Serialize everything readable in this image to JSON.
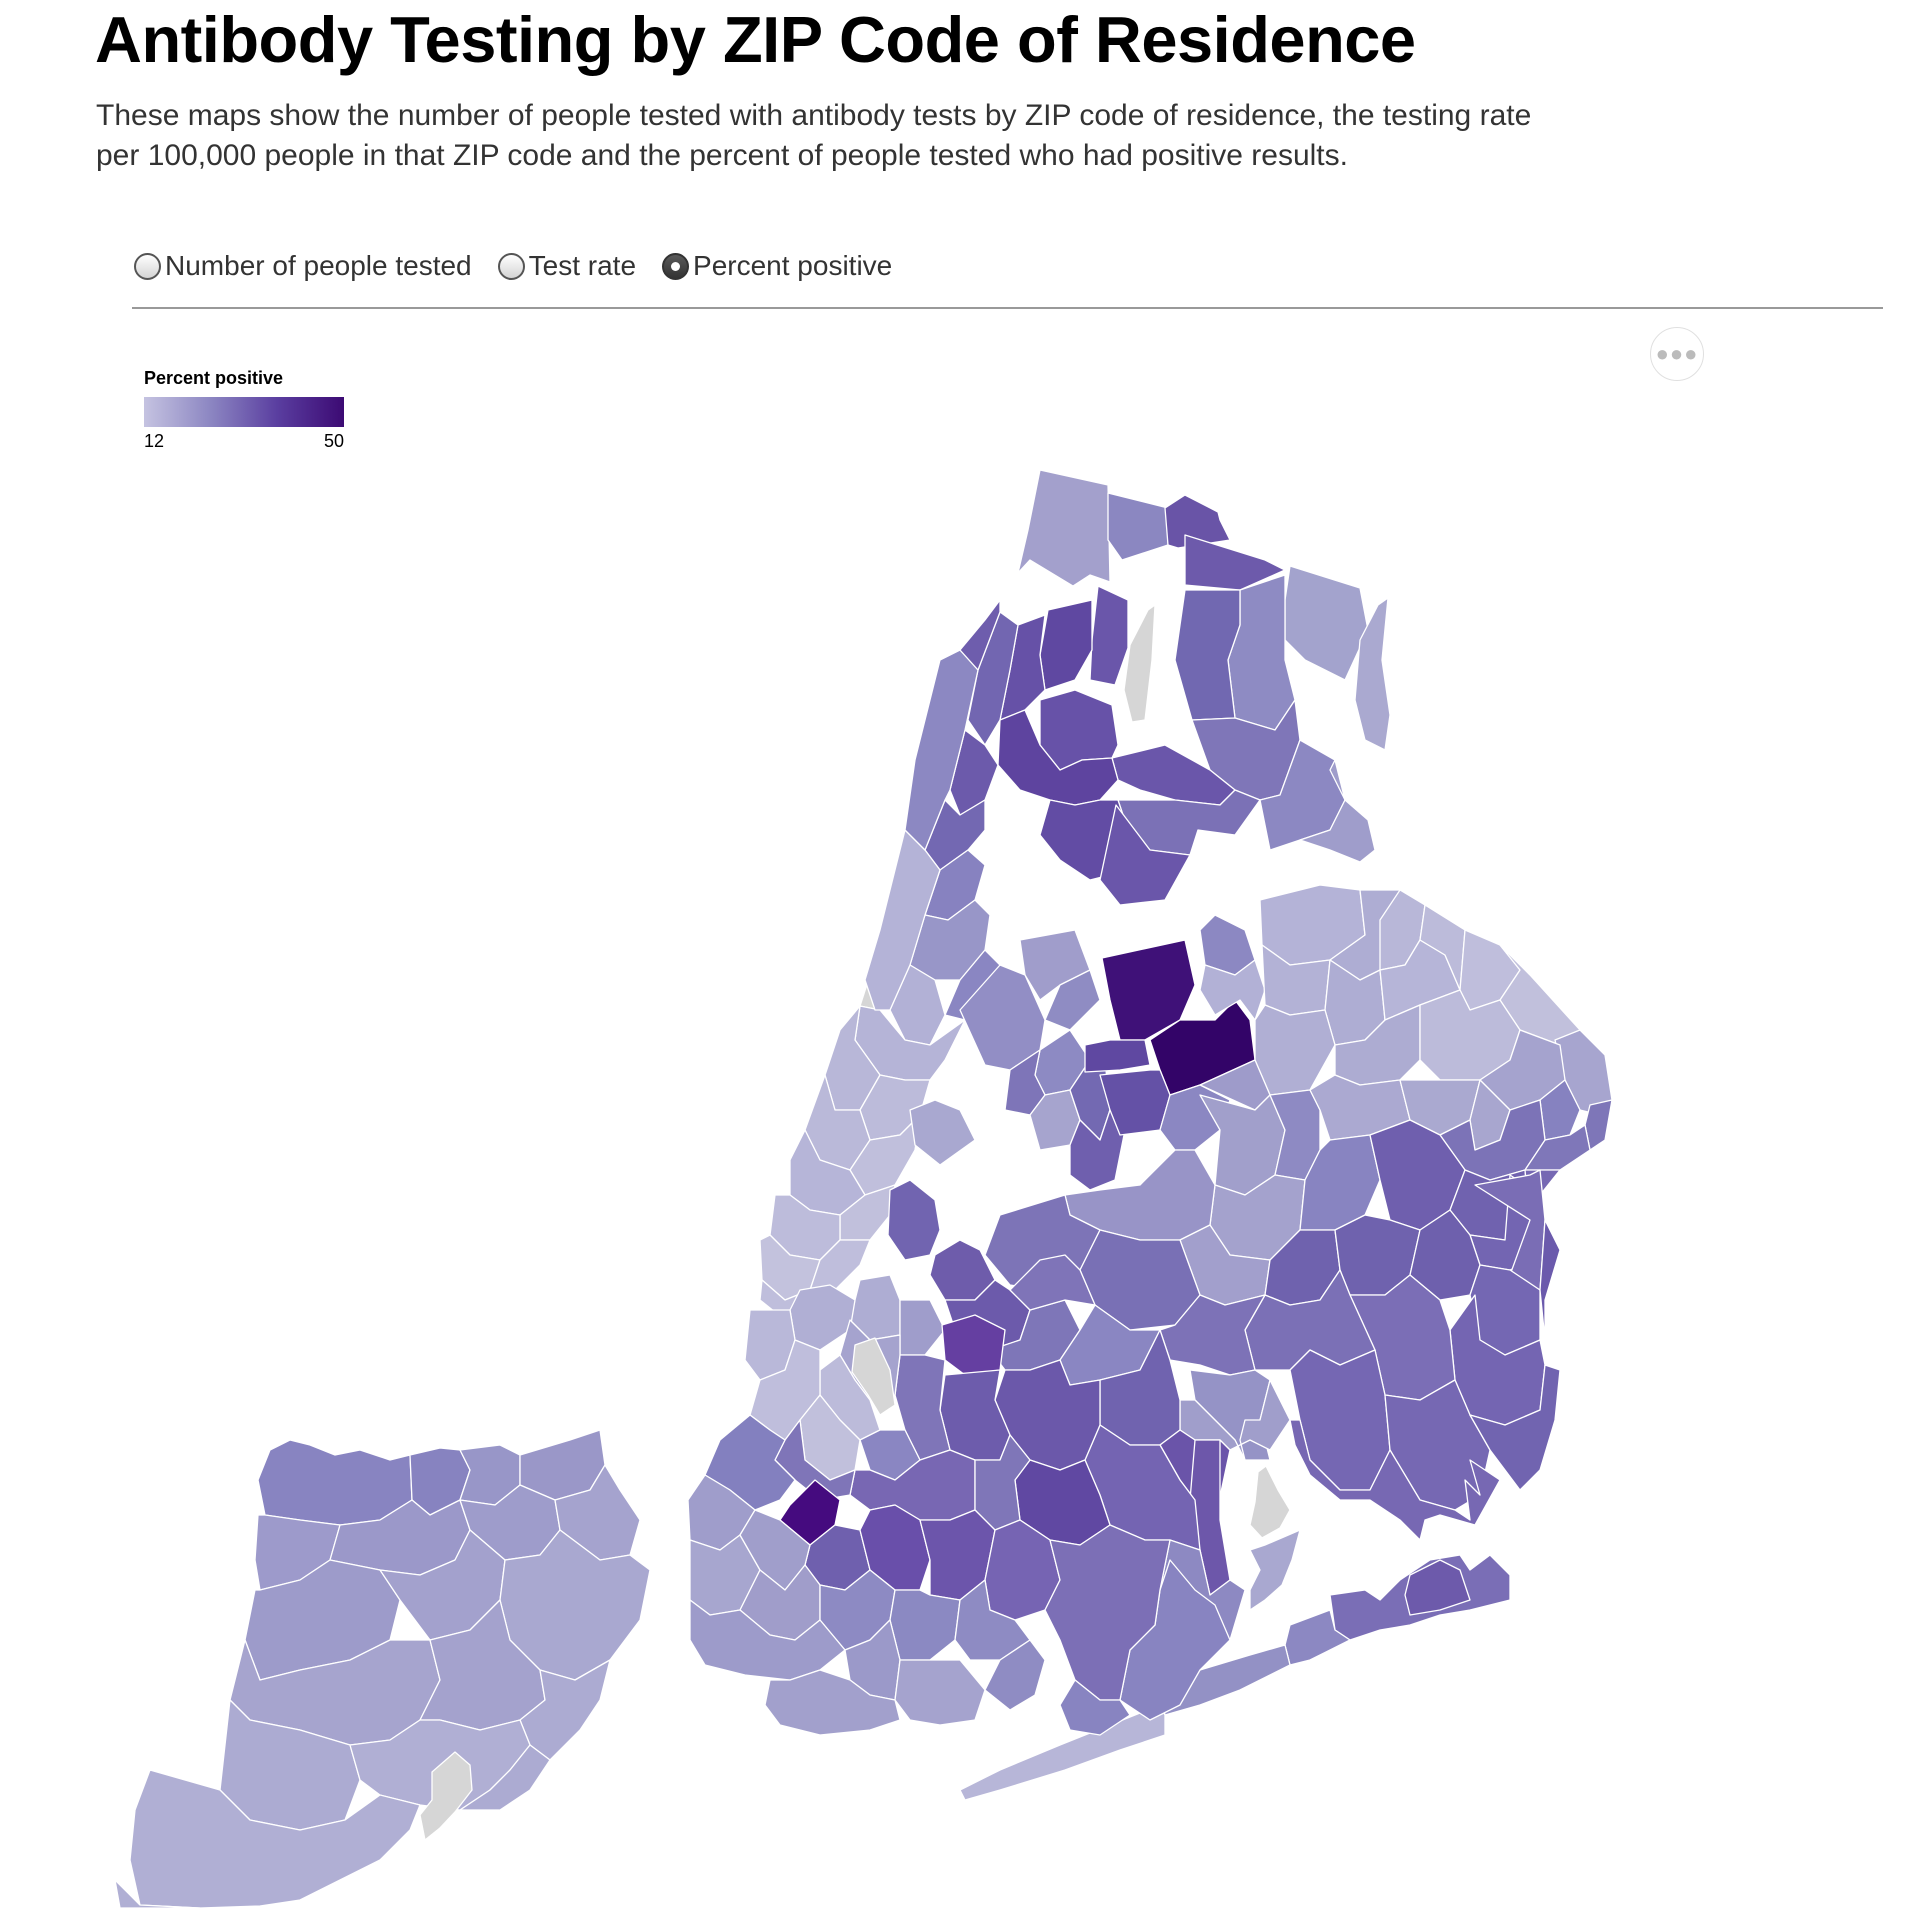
{
  "header": {
    "title": "Antibody Testing by ZIP Code of Residence",
    "description": "These maps show the number of people tested with antibody tests by ZIP code of residence, the testing rate per 100,000 people in that ZIP code and the percent of people tested who had positive results."
  },
  "controls": {
    "options": [
      {
        "label": "Number of people tested",
        "selected": false
      },
      {
        "label": "Test rate",
        "selected": false
      },
      {
        "label": "Percent positive",
        "selected": true
      }
    ],
    "more_icon": "ellipsis-icon"
  },
  "legend": {
    "title": "Percent positive",
    "min_label": "12",
    "max_label": "50",
    "colors": [
      "#c5c3e1",
      "#8c86c2",
      "#5a3ea0",
      "#3c0a73"
    ]
  },
  "map": {
    "no_data_color": "#d6d6d6",
    "boundary_color": "#ffffff"
  }
}
